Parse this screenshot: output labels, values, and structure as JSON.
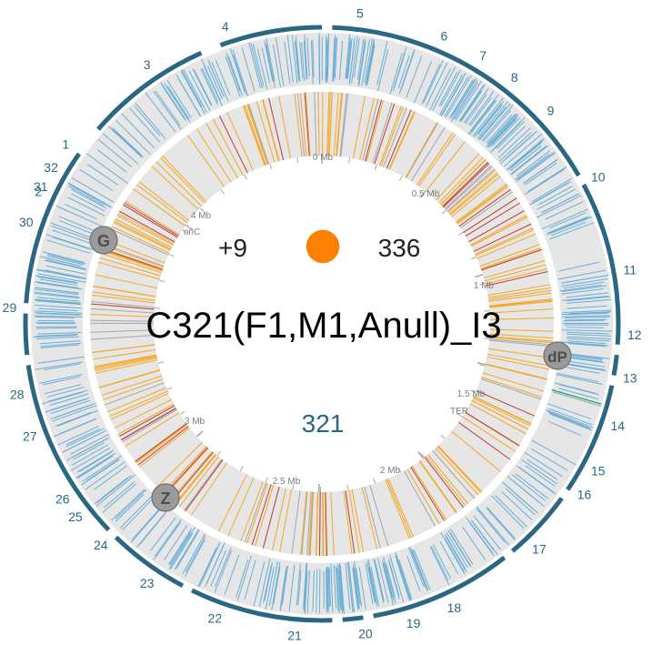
{
  "title": "C321(F1,M1,Anull)_I3",
  "left_stat": "+9",
  "right_stat": "336",
  "center_number": "321",
  "indicator_color": "#ff8000",
  "colors": {
    "accent": "#2a6782",
    "track_bg": "#e6e6e6",
    "outer_line": "#6aaed6",
    "inner_orange": "#f5a623",
    "inner_red": "#c0392b",
    "inner_gray": "#a6a6a6",
    "green_line": "#2e9e44"
  },
  "segments": [
    "1",
    "2",
    "3",
    "4",
    "5",
    "6",
    "7",
    "8",
    "9",
    "10",
    "11",
    "12",
    "13",
    "14",
    "15",
    "16",
    "17",
    "18",
    "19",
    "20",
    "21",
    "22",
    "23",
    "24",
    "25",
    "26",
    "27",
    "28",
    "29",
    "30",
    "31",
    "32"
  ],
  "mb_ticks": [
    "0 Mb",
    "0.5 Mb",
    "1 Mb",
    "1.5 Mb",
    "2 Mb",
    "2.5 Mb",
    "3 Mb",
    "4 Mb"
  ],
  "loci": [
    "oriC",
    "TER"
  ],
  "markers": [
    "G",
    "dP",
    "Z"
  ]
}
